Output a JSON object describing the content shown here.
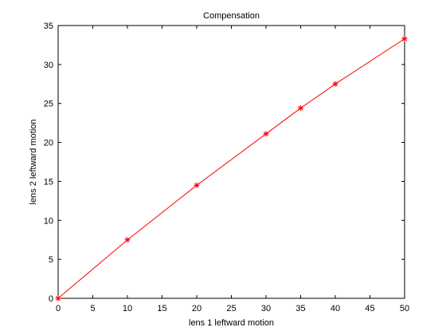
{
  "chart_data": {
    "type": "line",
    "title": "Compensation",
    "xlabel": "lens 1 leftward motion",
    "ylabel": "lens 2 leftward motion",
    "xlim": [
      0,
      50
    ],
    "ylim": [
      0,
      35
    ],
    "xticks": [
      0,
      5,
      10,
      15,
      20,
      25,
      30,
      35,
      40,
      45,
      50
    ],
    "yticks": [
      0,
      5,
      10,
      15,
      20,
      25,
      30,
      35
    ],
    "grid": false,
    "colors": {
      "line": "#ff0000",
      "marker": "#ff0000",
      "axes": "#000000",
      "background": "#ffffff"
    },
    "series": [
      {
        "x": [
          0,
          10,
          20,
          30,
          35,
          40,
          50
        ],
        "y": [
          0,
          7.5,
          14.5,
          21.1,
          24.4,
          27.5,
          33.3
        ],
        "marker": "asterisk"
      }
    ]
  }
}
